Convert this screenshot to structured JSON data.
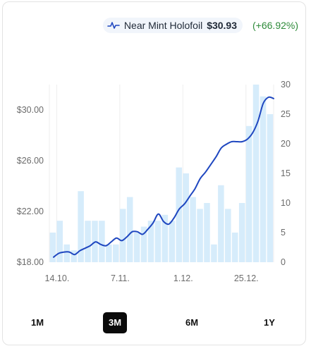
{
  "legend": {
    "label": "Near Mint Holofoil",
    "price": "$30.93",
    "change": "(+66.92%)",
    "line_color": "#1f47c0",
    "change_color": "#2e8b3a"
  },
  "ranges": [
    {
      "label": "1M",
      "active": false
    },
    {
      "label": "3M",
      "active": true
    },
    {
      "label": "6M",
      "active": false
    },
    {
      "label": "1Y",
      "active": false
    }
  ],
  "chart_data": {
    "type": "line+bar",
    "title": "",
    "x_ticks": [
      "14.10.",
      "7.11.",
      "1.12.",
      "25.12."
    ],
    "x_tick_index": [
      1,
      10,
      19,
      28
    ],
    "y_left": {
      "range": [
        18,
        32
      ],
      "ticks": [
        "$18.00",
        "$22.00",
        "$26.00",
        "$30.00"
      ],
      "tick_values": [
        18,
        22,
        26,
        30
      ]
    },
    "y_right": {
      "range": [
        0,
        30
      ],
      "ticks": [
        "0",
        "5",
        "10",
        "15",
        "20",
        "25",
        "30"
      ],
      "tick_values": [
        0,
        5,
        10,
        15,
        20,
        25,
        30
      ]
    },
    "series": [
      {
        "kind": "bar",
        "axis": "right",
        "color": "#d6ecfb",
        "values": [
          5,
          7,
          3,
          2,
          12,
          7,
          7,
          7,
          3,
          3,
          9,
          11,
          5,
          6,
          7,
          7,
          8,
          7,
          16,
          15,
          11,
          9,
          10,
          3,
          13,
          9,
          5,
          10,
          23,
          30,
          28,
          25
        ]
      },
      {
        "kind": "line",
        "axis": "left",
        "color": "#1f47c0",
        "points": [
          [
            0,
            18.4
          ],
          [
            1,
            18.7
          ],
          [
            2,
            18.8
          ],
          [
            3,
            18.8
          ],
          [
            4,
            18.6
          ],
          [
            5,
            18.9
          ],
          [
            6,
            19.1
          ],
          [
            7,
            19.3
          ],
          [
            8,
            19.6
          ],
          [
            9,
            19.4
          ],
          [
            10,
            19.3
          ],
          [
            11,
            19.6
          ],
          [
            12,
            19.9
          ],
          [
            13,
            19.7
          ],
          [
            14,
            20.0
          ],
          [
            15,
            20.4
          ],
          [
            16,
            20.4
          ],
          [
            17,
            20.2
          ],
          [
            18,
            20.6
          ],
          [
            19,
            21.1
          ],
          [
            20,
            21.8
          ],
          [
            21,
            21.2
          ],
          [
            22,
            21.0
          ],
          [
            23,
            21.5
          ],
          [
            24,
            22.2
          ],
          [
            25,
            22.6
          ],
          [
            26,
            23.2
          ],
          [
            27,
            23.8
          ],
          [
            28,
            24.6
          ],
          [
            29,
            25.1
          ],
          [
            30,
            25.7
          ],
          [
            31,
            26.3
          ],
          [
            32,
            27.0
          ],
          [
            33,
            27.3
          ],
          [
            34,
            27.5
          ],
          [
            35,
            27.5
          ],
          [
            36,
            27.5
          ],
          [
            37,
            27.7
          ],
          [
            38,
            28.2
          ],
          [
            39,
            29.1
          ],
          [
            40,
            30.5
          ],
          [
            41,
            31.0
          ],
          [
            42,
            30.9
          ]
        ]
      }
    ]
  }
}
